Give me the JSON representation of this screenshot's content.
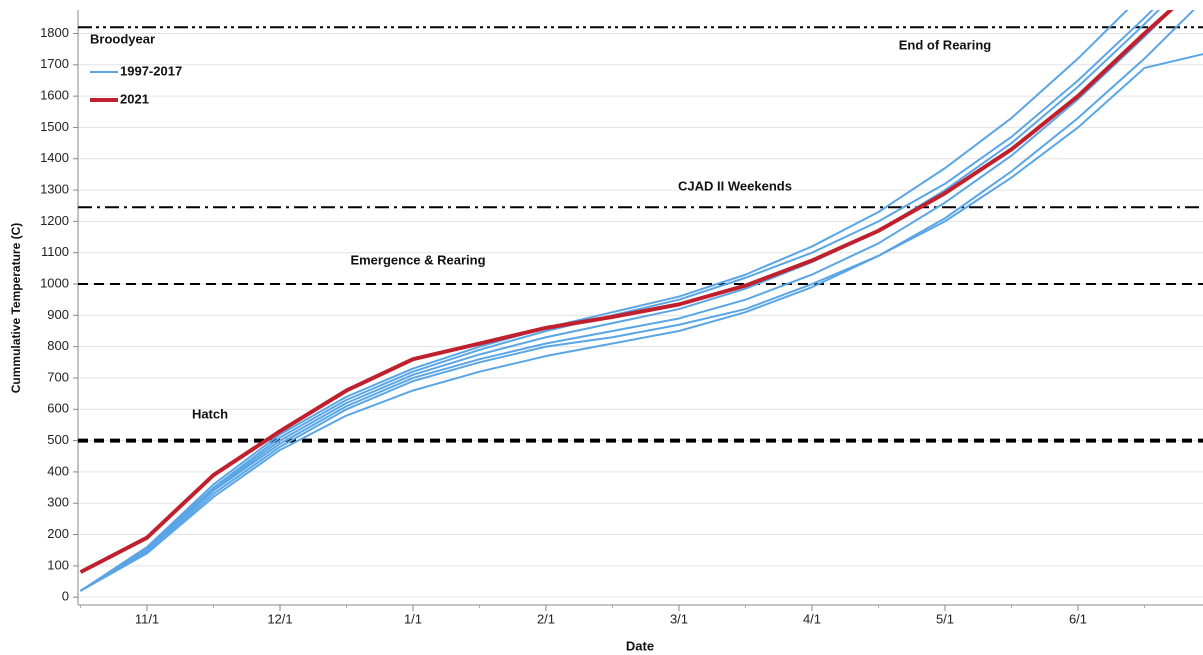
{
  "chart_data": {
    "type": "line",
    "x_label": "Date",
    "y_label": "Cummulative Temperature (C)",
    "legend_title": "Broodyear",
    "legend": "upper left",
    "categories": [
      null,
      "11/1",
      null,
      "12/1",
      null,
      "1/1",
      null,
      "2/1",
      null,
      "3/1",
      null,
      "4/1",
      null,
      "5/1",
      null,
      "6/1",
      null,
      null
    ],
    "ylim": [
      -25,
      1875
    ],
    "yticks": [
      0,
      100,
      200,
      300,
      400,
      500,
      600,
      700,
      800,
      900,
      1000,
      1100,
      1200,
      1300,
      1400,
      1500,
      1600,
      1700,
      1800
    ],
    "grid": true,
    "series": [
      {
        "name": "1997-2017",
        "color": "#5aa5e6",
        "width": 2,
        "lines": [
          [
            20,
            150,
            340,
            490,
            610,
            700,
            760,
            810,
            850,
            890,
            950,
            1030,
            1130,
            1260,
            1410,
            1590,
            1790,
            2000
          ],
          [
            20,
            160,
            360,
            520,
            640,
            730,
            800,
            860,
            910,
            960,
            1030,
            1120,
            1230,
            1370,
            1530,
            1720,
            1930,
            2150
          ],
          [
            20,
            140,
            320,
            470,
            580,
            660,
            720,
            770,
            810,
            850,
            910,
            990,
            1090,
            1210,
            1360,
            1530,
            1720,
            1930
          ],
          [
            20,
            155,
            350,
            510,
            630,
            720,
            790,
            850,
            900,
            950,
            1020,
            1100,
            1200,
            1320,
            1470,
            1650,
            1850,
            2060
          ],
          [
            20,
            145,
            330,
            480,
            600,
            690,
            750,
            800,
            830,
            870,
            920,
            1000,
            1090,
            1200,
            1340,
            1500,
            1690,
            1740
          ],
          [
            20,
            150,
            345,
            500,
            620,
            710,
            775,
            830,
            875,
            920,
            985,
            1070,
            1170,
            1300,
            1450,
            1630,
            1830,
            2040
          ]
        ]
      },
      {
        "name": "2021",
        "color": "#c0202e",
        "width": 4,
        "values": [
          80,
          190,
          390,
          530,
          660,
          760,
          810,
          860,
          895,
          935,
          995,
          1075,
          1170,
          1290,
          1430,
          1600,
          1800,
          1990
        ]
      }
    ],
    "reference_lines": [
      {
        "value": 500,
        "label": "Hatch",
        "dash": "10,6",
        "width": 4
      },
      {
        "value": 1000,
        "label": "Emergence & Rearing",
        "dash": "10,6",
        "width": 2
      },
      {
        "value": 1245,
        "label": "CJAD II Weekends",
        "dash": "14,5,3,5",
        "width": 2
      },
      {
        "value": 1820,
        "label": "End of Rearing",
        "dash": "14,4,3,4,3,4",
        "width": 2
      }
    ]
  }
}
